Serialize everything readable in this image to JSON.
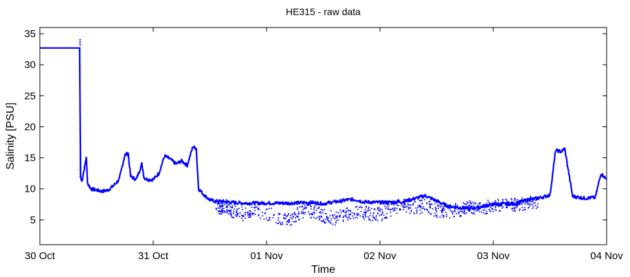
{
  "chart_data": {
    "type": "scatter",
    "title": "HE315 - raw data",
    "xlabel": "Time",
    "ylabel": "Salinity [PSU]",
    "x_unit": "days",
    "xlim": [
      0,
      5
    ],
    "ylim": [
      1,
      36
    ],
    "x_ticks": [
      0,
      1,
      2,
      3,
      4,
      5
    ],
    "x_tick_labels": [
      "30 Oct",
      "31 Oct",
      "01 Nov",
      "02 Nov",
      "03 Nov",
      "04 Nov"
    ],
    "y_ticks": [
      5,
      10,
      15,
      20,
      25,
      30,
      35
    ],
    "y_tick_labels": [
      "5",
      "10",
      "15",
      "20",
      "25",
      "30",
      "35"
    ],
    "grid": false,
    "color": "#0000ff",
    "series": [
      {
        "name": "Salinity",
        "x": [
          0.0,
          0.35,
          0.36,
          0.37,
          0.4,
          0.41,
          0.42,
          0.45,
          0.5,
          0.55,
          0.6,
          0.65,
          0.7,
          0.75,
          0.78,
          0.8,
          0.85,
          0.9,
          0.92,
          0.95,
          1.0,
          1.05,
          1.1,
          1.15,
          1.2,
          1.25,
          1.3,
          1.35,
          1.38,
          1.4,
          1.45,
          1.5,
          1.55,
          1.6,
          1.7,
          1.8,
          2.0,
          2.2,
          2.4,
          2.5,
          2.6,
          2.65,
          2.7,
          2.75,
          2.8,
          2.85,
          3.0,
          3.2,
          3.4,
          3.6,
          3.8,
          4.0,
          4.2,
          4.3,
          4.4,
          4.5,
          4.55,
          4.6,
          4.63,
          4.7,
          4.8,
          4.9,
          4.95,
          5.0
        ],
        "y": [
          32.7,
          32.7,
          11.8,
          11.2,
          14.0,
          15.2,
          11.0,
          10.0,
          9.8,
          9.6,
          9.8,
          10.5,
          11.5,
          15.5,
          15.7,
          12.0,
          11.5,
          14.0,
          11.8,
          11.5,
          11.5,
          12.5,
          15.3,
          14.8,
          14.0,
          14.5,
          13.8,
          16.8,
          16.5,
          10.0,
          9.0,
          8.2,
          8.0,
          8.0,
          7.8,
          7.7,
          7.7,
          7.7,
          7.8,
          7.6,
          7.9,
          8.0,
          8.2,
          8.3,
          8.2,
          7.9,
          7.8,
          7.9,
          8.9,
          7.2,
          6.8,
          7.5,
          7.6,
          8.2,
          8.5,
          9.0,
          16.2,
          16.0,
          16.5,
          8.8,
          8.5,
          8.6,
          12.5,
          11.5
        ],
        "lower_scatter": {
          "x": [
            1.55,
            1.6,
            1.65,
            1.7,
            1.8,
            1.9,
            2.1,
            2.2,
            2.3,
            2.4,
            2.5,
            2.6,
            2.7,
            2.8,
            2.9,
            3.0,
            3.1,
            3.2,
            3.3,
            3.4,
            3.5,
            3.6,
            3.7,
            3.8,
            3.9,
            4.0,
            4.1,
            4.2,
            4.3,
            4.4
          ],
          "y": [
            7.0,
            6.5,
            6.8,
            6.0,
            5.5,
            6.2,
            5.0,
            4.5,
            5.8,
            6.0,
            5.2,
            4.8,
            5.5,
            6.0,
            5.6,
            5.4,
            6.2,
            7.0,
            6.5,
            6.8,
            6.0,
            5.8,
            6.2,
            6.6,
            6.4,
            6.8,
            7.0,
            6.9,
            7.2,
            7.4
          ]
        }
      }
    ]
  }
}
